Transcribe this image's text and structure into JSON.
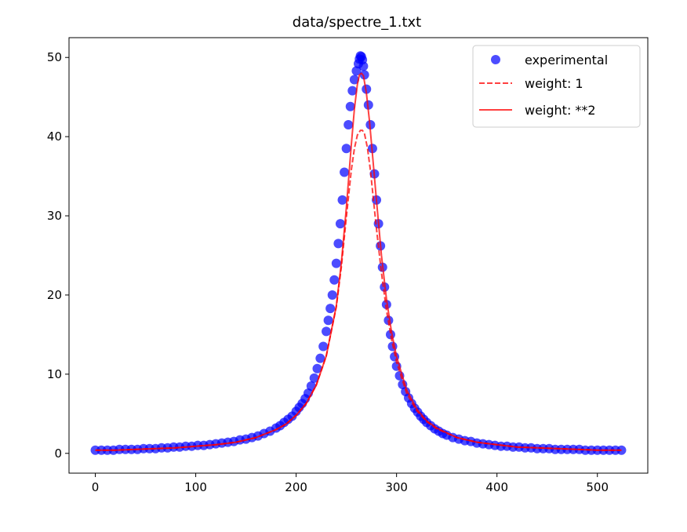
{
  "chart_data": {
    "type": "scatter",
    "title": "data/spectre_1.txt",
    "xlabel": "",
    "ylabel": "",
    "xlim": [
      -26.2,
      550.2
    ],
    "ylim": [
      -2.5,
      52.5
    ],
    "xticks": [
      0,
      100,
      200,
      300,
      400,
      500
    ],
    "yticks": [
      0,
      10,
      20,
      30,
      40,
      50
    ],
    "grid": false,
    "legend_position": "top-right",
    "legend": [
      "experimental",
      "weight: 1",
      "weight: **2"
    ],
    "colors": {
      "experimental": "#0000ff",
      "fit": "#ff0000",
      "axes": "#000000",
      "legend_border": "#cccccc"
    },
    "series": [
      {
        "name": "experimental",
        "kind": "scatter",
        "peak_x": 265,
        "peak_y": 50.2,
        "x": [
          0,
          6,
          12,
          18,
          24,
          30,
          36,
          42,
          48,
          54,
          60,
          66,
          72,
          78,
          84,
          90,
          96,
          102,
          108,
          114,
          120,
          126,
          132,
          138,
          144,
          150,
          156,
          162,
          168,
          174,
          180,
          184,
          188,
          192,
          196,
          200,
          203,
          206,
          209,
          212,
          215,
          218,
          221,
          224,
          227,
          230,
          232,
          234,
          236,
          238,
          240,
          242,
          244,
          246,
          248,
          250,
          252,
          254,
          256,
          258,
          260,
          262,
          263,
          264,
          265,
          266,
          267,
          268,
          270,
          272,
          274,
          276,
          278,
          280,
          282,
          284,
          286,
          288,
          290,
          292,
          294,
          296,
          298,
          300,
          303,
          306,
          309,
          312,
          315,
          318,
          321,
          324,
          327,
          330,
          334,
          338,
          342,
          346,
          350,
          356,
          362,
          368,
          374,
          380,
          386,
          392,
          398,
          404,
          410,
          416,
          422,
          428,
          434,
          440,
          446,
          452,
          458,
          464,
          470,
          476,
          482,
          488,
          494,
          500,
          506,
          512,
          518,
          524
        ],
        "y": [
          0.4,
          0.4,
          0.4,
          0.4,
          0.5,
          0.5,
          0.5,
          0.5,
          0.6,
          0.6,
          0.6,
          0.7,
          0.7,
          0.8,
          0.8,
          0.9,
          0.9,
          1.0,
          1.0,
          1.1,
          1.2,
          1.3,
          1.4,
          1.5,
          1.7,
          1.8,
          2.0,
          2.2,
          2.5,
          2.8,
          3.2,
          3.5,
          3.9,
          4.3,
          4.7,
          5.3,
          5.8,
          6.3,
          6.9,
          7.6,
          8.5,
          9.5,
          10.7,
          12.0,
          13.5,
          15.4,
          16.8,
          18.3,
          20.0,
          21.9,
          24.0,
          26.5,
          29.0,
          32.0,
          35.5,
          38.5,
          41.5,
          43.8,
          45.8,
          47.2,
          48.3,
          49.2,
          49.8,
          50.2,
          50.1,
          49.7,
          48.9,
          47.8,
          46.0,
          44.0,
          41.5,
          38.5,
          35.3,
          32.0,
          29.0,
          26.2,
          23.5,
          21.0,
          18.8,
          16.8,
          15.0,
          13.5,
          12.2,
          11.0,
          9.8,
          8.7,
          7.8,
          7.0,
          6.3,
          5.7,
          5.2,
          4.7,
          4.3,
          3.9,
          3.5,
          3.1,
          2.8,
          2.5,
          2.3,
          2.0,
          1.8,
          1.6,
          1.5,
          1.3,
          1.2,
          1.1,
          1.0,
          0.9,
          0.9,
          0.8,
          0.8,
          0.7,
          0.7,
          0.6,
          0.6,
          0.6,
          0.5,
          0.5,
          0.5,
          0.5,
          0.5,
          0.4,
          0.4,
          0.4,
          0.4,
          0.4,
          0.4,
          0.4
        ]
      },
      {
        "name": "weight: 1",
        "kind": "line",
        "style": "dashed",
        "x": [
          0,
          20,
          40,
          60,
          80,
          100,
          120,
          140,
          160,
          180,
          190,
          200,
          210,
          220,
          230,
          240,
          245,
          250,
          255,
          258,
          261,
          264,
          266,
          268,
          271,
          274,
          277,
          280,
          285,
          290,
          295,
          300,
          310,
          320,
          330,
          340,
          360,
          380,
          400,
          420,
          440,
          460,
          480,
          500,
          524
        ],
        "y": [
          0.4,
          0.4,
          0.5,
          0.6,
          0.7,
          0.9,
          1.1,
          1.4,
          2.0,
          3.0,
          3.7,
          4.8,
          6.3,
          8.6,
          12.3,
          18.5,
          23.5,
          29.8,
          35.8,
          38.5,
          40.2,
          40.8,
          40.8,
          40.4,
          38.6,
          35.7,
          32.0,
          28.4,
          22.8,
          18.0,
          14.4,
          11.5,
          7.6,
          5.4,
          4.0,
          3.1,
          2.0,
          1.4,
          1.1,
          0.8,
          0.7,
          0.6,
          0.5,
          0.4,
          0.4
        ]
      },
      {
        "name": "weight: **2",
        "kind": "line",
        "style": "solid",
        "x": [
          0,
          20,
          40,
          60,
          80,
          100,
          120,
          140,
          160,
          180,
          190,
          200,
          210,
          220,
          230,
          240,
          245,
          250,
          255,
          258,
          261,
          263,
          265,
          267,
          270,
          273,
          276,
          280,
          285,
          290,
          295,
          300,
          310,
          320,
          330,
          340,
          360,
          380,
          400,
          420,
          440,
          460,
          480,
          500,
          524
        ],
        "y": [
          0.4,
          0.4,
          0.5,
          0.6,
          0.7,
          0.9,
          1.1,
          1.4,
          2.0,
          3.0,
          3.7,
          4.8,
          6.3,
          8.6,
          12.3,
          18.6,
          24.0,
          31.0,
          39.0,
          43.5,
          46.6,
          47.8,
          48.0,
          47.7,
          45.5,
          42.0,
          37.8,
          32.0,
          25.0,
          19.4,
          15.3,
          12.2,
          8.0,
          5.6,
          4.1,
          3.2,
          2.0,
          1.4,
          1.1,
          0.8,
          0.7,
          0.6,
          0.5,
          0.4,
          0.4
        ]
      }
    ]
  }
}
